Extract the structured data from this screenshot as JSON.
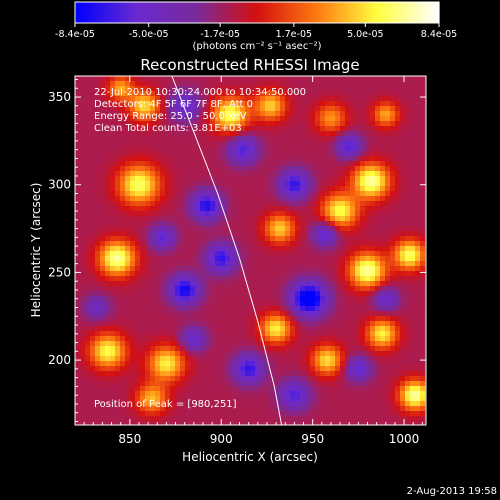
{
  "chart_data": {
    "type": "heatmap",
    "title": "Reconstructed RHESSI Image",
    "xlabel": "Heliocentric X (arcsec)",
    "ylabel": "Heliocentric Y (arcsec)",
    "xlim": [
      820,
      1012
    ],
    "ylim": [
      163,
      362
    ],
    "x_ticks": [
      850,
      900,
      950,
      1000
    ],
    "y_ticks": [
      200,
      250,
      300,
      350
    ],
    "colorbar": {
      "ticks": [
        "-8.4e-05",
        "-5.0e-05",
        "-1.7e-05",
        "1.7e-05",
        "5.0e-05",
        "8.4e-05"
      ],
      "tick_values": [
        -8.4e-05,
        -5e-05,
        -1.7e-05,
        1.7e-05,
        5e-05,
        8.4e-05
      ],
      "range": [
        -8.4e-05,
        8.4e-05
      ],
      "units_label": "(photons cm⁻² s⁻¹ asec⁻²)",
      "colors": [
        "#0000ff",
        "#6a2ad0",
        "#7a2a9a",
        "#d41010",
        "#ff7a10",
        "#ffff40",
        "#ffffff"
      ]
    },
    "annotations": [
      "22-Jul-2010 10:30:24.000 to 10:34:50.000",
      "Detectors: 4F 5F 6F 7F 8F, Att 0",
      "Energy Range: 25.0 - 50.0 keV",
      "Clean     Total counts: 3.81E+03"
    ],
    "peak_label": "Position of Peak = [980,251]",
    "peak": [
      980,
      251
    ],
    "limb_curve": [
      [
        873,
        362
      ],
      [
        885,
        330
      ],
      [
        898,
        295
      ],
      [
        910,
        258
      ],
      [
        920,
        222
      ],
      [
        929,
        185
      ],
      [
        933,
        163
      ]
    ],
    "sources": [
      [
        843,
        258,
        1.0,
        7
      ],
      [
        838,
        205,
        0.85,
        7
      ],
      [
        870,
        198,
        0.8,
        7
      ],
      [
        855,
        300,
        0.9,
        8
      ],
      [
        905,
        340,
        0.9,
        7
      ],
      [
        927,
        345,
        0.7,
        6
      ],
      [
        932,
        275,
        0.7,
        6
      ],
      [
        930,
        218,
        0.8,
        6
      ],
      [
        958,
        200,
        0.75,
        6
      ],
      [
        965,
        285,
        0.85,
        7
      ],
      [
        982,
        302,
        1.0,
        7
      ],
      [
        980,
        251,
        1.0,
        7
      ],
      [
        988,
        215,
        0.8,
        6
      ],
      [
        1003,
        260,
        0.9,
        6
      ],
      [
        1006,
        180,
        1.0,
        6
      ],
      [
        858,
        345,
        0.75,
        6
      ],
      [
        862,
        178,
        0.65,
        6
      ],
      [
        960,
        338,
        0.55,
        6
      ],
      [
        990,
        340,
        0.6,
        5
      ],
      [
        845,
        355,
        0.6,
        5
      ],
      [
        880,
        240,
        -0.8,
        6
      ],
      [
        892,
        288,
        -0.75,
        6
      ],
      [
        912,
        320,
        -0.6,
        6
      ],
      [
        948,
        235,
        -1.0,
        7
      ],
      [
        940,
        300,
        -0.7,
        6
      ],
      [
        915,
        195,
        -0.7,
        6
      ],
      [
        970,
        322,
        -0.6,
        5
      ],
      [
        900,
        258,
        -0.7,
        6
      ],
      [
        957,
        272,
        -0.6,
        5
      ],
      [
        880,
        345,
        -0.55,
        6
      ],
      [
        975,
        195,
        -0.55,
        5
      ],
      [
        940,
        180,
        -0.6,
        6
      ],
      [
        990,
        235,
        -0.5,
        5
      ],
      [
        868,
        270,
        -0.55,
        5
      ],
      [
        832,
        230,
        -0.4,
        5
      ],
      [
        885,
        212,
        -0.5,
        5
      ]
    ]
  },
  "footer": {
    "date": "2-Aug-2013 19:58"
  }
}
